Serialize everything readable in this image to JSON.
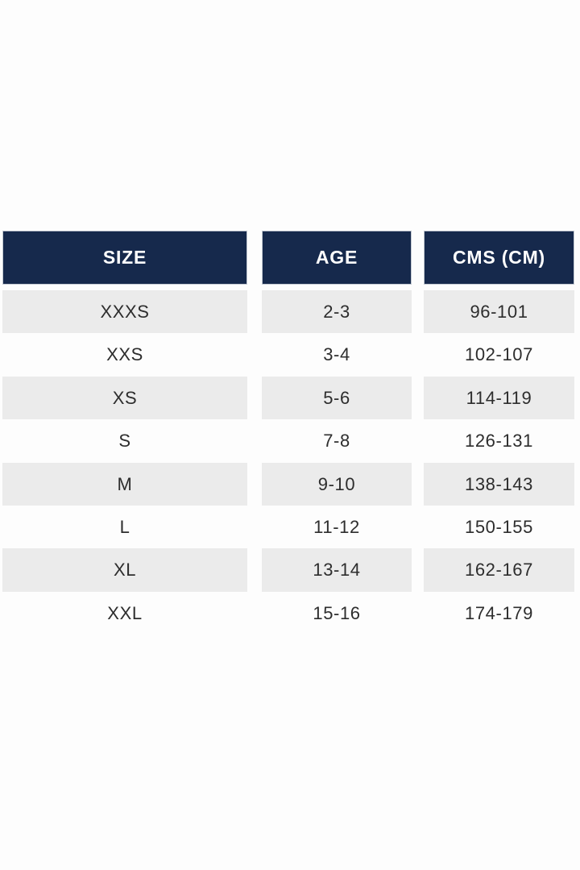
{
  "colors": {
    "page_bg": "#fdfdfd",
    "header_bg": "#16294c",
    "header_text": "#ffffff",
    "header_border": "#c3c9d2",
    "alt_row_bg": "#ebebeb",
    "cell_text": "#2d2d2d"
  },
  "chart_data": {
    "type": "table",
    "columns": [
      "SIZE",
      "AGE",
      "CMS (CM)"
    ],
    "rows": [
      [
        "XXXS",
        "2-3",
        "96-101"
      ],
      [
        "XXS",
        "3-4",
        "102-107"
      ],
      [
        "XS",
        "5-6",
        "114-119"
      ],
      [
        "S",
        "7-8",
        "126-131"
      ],
      [
        "M",
        "9-10",
        "138-143"
      ],
      [
        "L",
        "11-12",
        "150-155"
      ],
      [
        "XL",
        "13-14",
        "162-167"
      ],
      [
        "XXL",
        "15-16",
        "174-179"
      ]
    ],
    "layout": {
      "header_position": "top",
      "alternating_rows": true,
      "gridlines": false,
      "column_gaps": true
    }
  }
}
